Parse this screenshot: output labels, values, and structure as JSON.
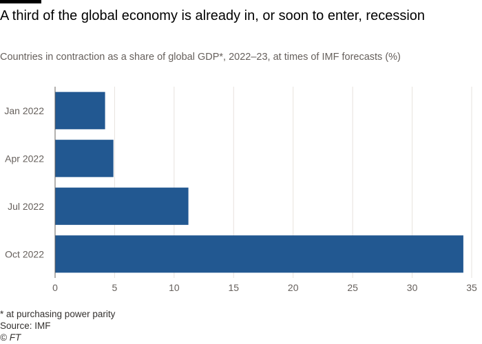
{
  "header": {
    "title": "A third of the global economy is already in, or soon to enter, recession",
    "subtitle": "Countries in contraction as a share of global GDP*, 2022–23, at times of IMF forecasts (%)"
  },
  "footer": {
    "note": "* at purchasing power parity",
    "source": "Source: IMF",
    "copyright": "© FT"
  },
  "colors": {
    "bar": "#225891",
    "grid": "#e6e2dd",
    "axis": "#66605c",
    "text": "#66605c"
  },
  "chart_data": {
    "type": "bar",
    "orientation": "horizontal",
    "categories": [
      "Jan 2022",
      "Apr 2022",
      "Jul 2022",
      "Oct 2022"
    ],
    "values": [
      4.2,
      4.9,
      11.2,
      34.3
    ],
    "xlim": [
      0,
      35
    ],
    "xticks": [
      0,
      5,
      10,
      15,
      20,
      25,
      30,
      35
    ],
    "grid": true,
    "xlabel": "",
    "ylabel": ""
  }
}
